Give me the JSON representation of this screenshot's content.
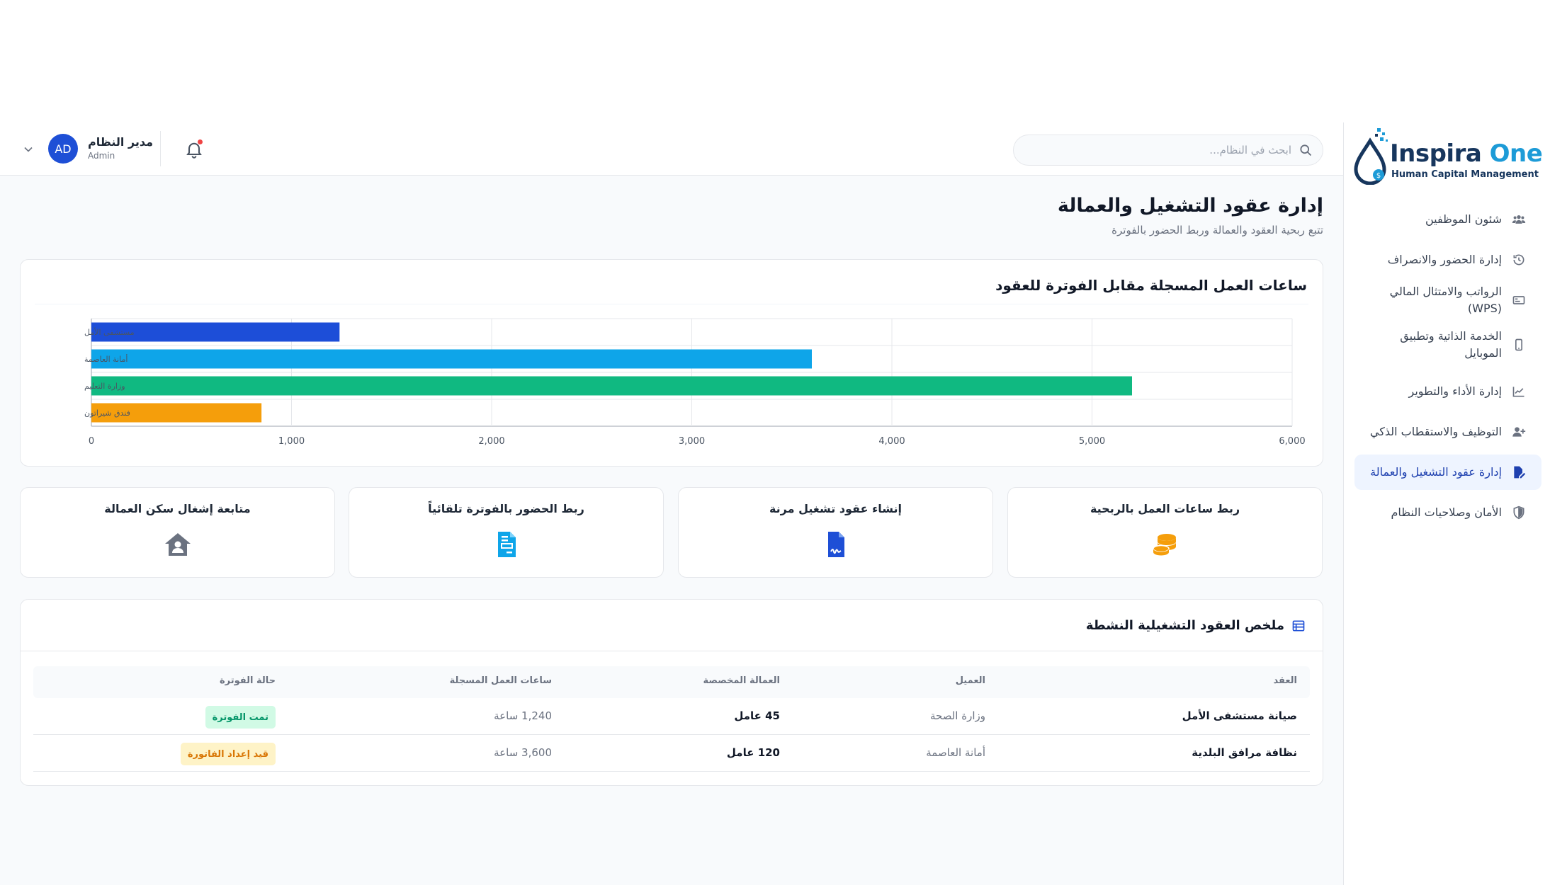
{
  "brand": {
    "name_main": "Inspira",
    "name_accent": "One",
    "tagline": "Human Capital Management"
  },
  "sidebar": {
    "items": [
      {
        "label": "شئون الموظفين",
        "icon": "users-icon"
      },
      {
        "label": "إدارة الحضور والانصراف",
        "icon": "history-icon"
      },
      {
        "label": "الرواتب والامتثال المالي (WPS)",
        "icon": "money-card-icon"
      },
      {
        "label": "الخدمة الذاتية وتطبيق الموبايل",
        "icon": "mobile-icon"
      },
      {
        "label": "إدارة الأداء والتطوير",
        "icon": "trend-chart-icon"
      },
      {
        "label": "التوظيف والاستقطاب الذكي",
        "icon": "user-plus-icon"
      },
      {
        "label": "إدارة عقود التشغيل والعمالة",
        "icon": "contract-sign-icon",
        "active": true
      },
      {
        "label": "الأمان وصلاحيات النظام",
        "icon": "shield-icon"
      }
    ]
  },
  "header": {
    "search_placeholder": "ابحث في النظام...",
    "user_initials": "AD",
    "user_name": "مدير النظام",
    "user_role": "Admin"
  },
  "page": {
    "title": "إدارة عقود التشغيل والعمالة",
    "subtitle": "تتبع ربحية العقود والعمالة وربط الحضور بالفوترة"
  },
  "chart_data": {
    "type": "bar",
    "orientation": "horizontal",
    "title": "ساعات العمل المسجلة مقابل الفوترة للعقود",
    "categories": [
      "مستشفى الأمل",
      "أمانة العاصمة",
      "وزارة التعليم",
      "فندق شيراتون"
    ],
    "values": [
      1240,
      3600,
      5200,
      850
    ],
    "colors": [
      "#1d4ed8",
      "#0ea5e9",
      "#10b981",
      "#f59e0b"
    ],
    "xlim": [
      0,
      6000
    ],
    "xticks": [
      "0",
      "1,000",
      "2,000",
      "3,000",
      "4,000",
      "5,000",
      "6,000"
    ],
    "grid": true
  },
  "features": [
    {
      "label": "ربط ساعات العمل بالربحية",
      "icon": "coins-icon",
      "color": "#f59e0b"
    },
    {
      "label": "إنشاء عقود تشغيل مرنة",
      "icon": "signed-contract-icon",
      "color": "#1e4fd6"
    },
    {
      "label": "ربط الحضور بالفوترة تلقائياً",
      "icon": "invoice-icon",
      "color": "#0ea5e9"
    },
    {
      "label": "متابعة إشغال سكن العمالة",
      "icon": "house-user-icon",
      "color": "#6b7280"
    }
  ],
  "table": {
    "title": "ملخص العقود التشغيلية النشطة",
    "headers": [
      "العقد",
      "العميل",
      "العمالة المخصصة",
      "ساعات العمل المسجلة",
      "حالة الفوترة"
    ],
    "rows": [
      {
        "contract": "صيانة مستشفى الأمل",
        "client": "وزارة الصحة",
        "workers": "45 عامل",
        "hours": "1,240 ساعة",
        "status": "تمت الفوترة",
        "status_color": "#059669",
        "status_bg": "#d1fae5"
      },
      {
        "contract": "نظافة مرافق البلدية",
        "client": "أمانة العاصمة",
        "workers": "120 عامل",
        "hours": "3,600 ساعة",
        "status": "قيد إعداد الفاتورة",
        "status_color": "#d97706",
        "status_bg": "#fef3c7"
      }
    ]
  }
}
